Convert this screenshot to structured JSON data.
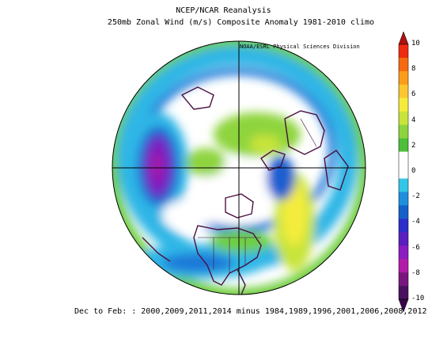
{
  "title": "NCEP/NCAR Reanalysis",
  "subtitle": "250mb Zonal Wind (m/s) Composite Anomaly 1981-2010 climo",
  "credit": "NOAA/ESRL Physical Sciences Division",
  "footer": "Dec to Feb: : 2000,2009,2011,2014 minus 1984,1989,1996,2001,2006,2008,2012",
  "colorbar": {
    "ticks": [
      "10",
      "8",
      "6",
      "4",
      "2",
      "0",
      "-2",
      "-4",
      "-6",
      "-8",
      "-10"
    ],
    "colors": [
      "#ee2a10",
      "#f56a10",
      "#fb9d1a",
      "#fcc730",
      "#f4ec3c",
      "#c8e43a",
      "#8ed43e",
      "#4cbe3a",
      "#ffffff",
      "#ffffff",
      "#34c6e6",
      "#1f8fdc",
      "#1560c8",
      "#2b2fc8",
      "#5a1fbe",
      "#8a1cc0",
      "#b11ba8",
      "#7a1580",
      "#4a1060"
    ]
  },
  "projection": "north-polar-stereographic"
}
